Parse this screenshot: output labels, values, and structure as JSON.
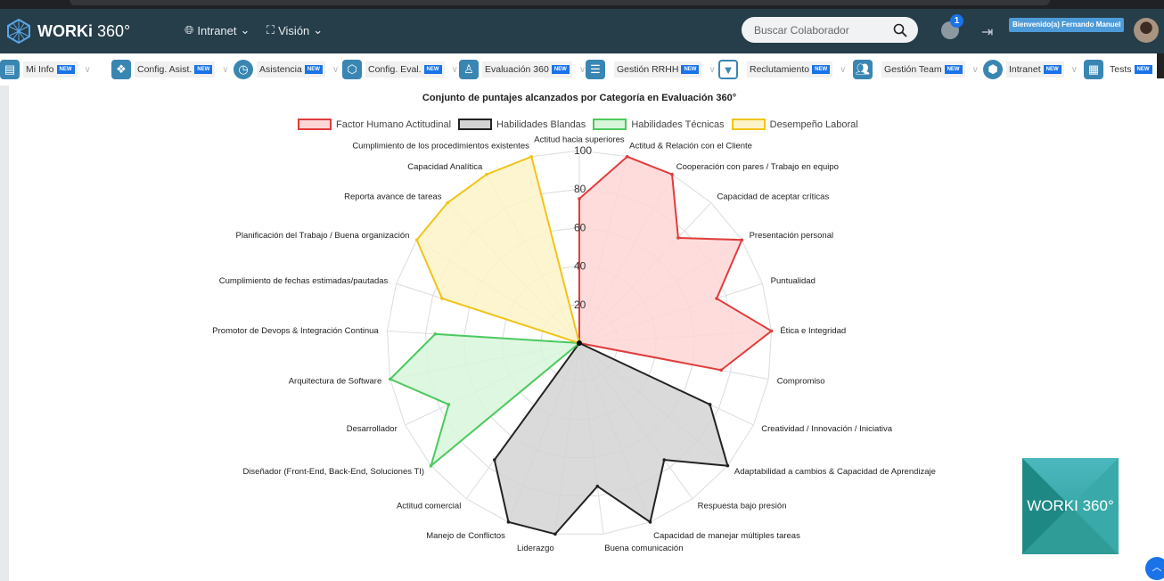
{
  "header": {
    "brand_bold": "WORKi",
    "brand_rest": " 360°",
    "nav": [
      {
        "label": "Intranet",
        "icon": "globe-icon"
      },
      {
        "label": "Visión",
        "icon": "fullscreen-icon"
      }
    ],
    "search_placeholder": "Buscar Colaborador",
    "notification_count": "1",
    "welcome": "Bienvenido(a) Fernando Manuel"
  },
  "navbar": {
    "new_label": "NEW",
    "items": [
      {
        "label": "Mi Info",
        "icon": "id-card-icon"
      },
      {
        "label": "Config. Asist.",
        "icon": "dropbox-icon"
      },
      {
        "label": "Asistencia",
        "icon": "clock-icon"
      },
      {
        "label": "Config. Eval.",
        "icon": "box-icon"
      },
      {
        "label": "Evaluación 360",
        "icon": "award-icon"
      },
      {
        "label": "Gestión RRHH",
        "icon": "stack-icon"
      },
      {
        "label": "Reclutamiento",
        "icon": "tie-icon"
      },
      {
        "label": "Gestión Team",
        "icon": "users-icon"
      },
      {
        "label": "Intranet",
        "icon": "network-icon"
      },
      {
        "label": "Tests",
        "icon": "grid-icon"
      }
    ]
  },
  "chart_data": {
    "type": "radar",
    "title": "Conjunto de puntajes alcanzados por Categoría en Evaluación 360°",
    "rlim": [
      0,
      100
    ],
    "ticks": [
      20,
      40,
      60,
      80,
      100
    ],
    "grid": true,
    "legend_position": "top",
    "categories": [
      "Actitud hacia superiores",
      "Actitud & Relación con el Cliente",
      "Cooperación con pares / Trabajo en equipo",
      "Capacidad de aceptar críticas",
      "Presentación personal",
      "Puntualidad",
      "Ética e Integridad",
      "Compromiso",
      "Creatividad / Innovación / Iniciativa",
      "Adaptabilidad a cambios &  Capacidad de Aprendizaje",
      "Respuesta bajo presión",
      "Capacidad de manejar múltiples tareas",
      "Buena comunicación",
      "Liderazgo",
      "Manejo de Conflictos",
      "Actitud comercial",
      "Diseñador (Front-End, Back-End, Soluciones TI)",
      "Desarrollador",
      "Arquitectura de Software",
      "Promotor de Devops & Integración Continua",
      "Cumplimiento de fechas estimadas/pautadas",
      "Planificación del Trabajo / Buena organización",
      "Reporta avance de tareas",
      "Capacidad Analítica",
      "Cumplimiento de los procedimientos existentes"
    ],
    "series": [
      {
        "name": "Factor Humano Actitudinal",
        "color": "#e03c3c",
        "fill": "#ffd6d6",
        "values": [
          75,
          100,
          100,
          75,
          100,
          75,
          100,
          75,
          0,
          0,
          0,
          0,
          0,
          0,
          0,
          0,
          0,
          0,
          0,
          0,
          0,
          0,
          0,
          0,
          0
        ]
      },
      {
        "name": "Habilidades Blandas",
        "color": "#222222",
        "fill": "#d3d3d3",
        "values": [
          0,
          0,
          0,
          0,
          0,
          0,
          0,
          0,
          75,
          100,
          75,
          100,
          75,
          100,
          100,
          75,
          0,
          0,
          0,
          0,
          0,
          0,
          0,
          0,
          0
        ]
      },
      {
        "name": "Habilidades Técnicas",
        "color": "#4cc95e",
        "fill": "#d8f6dc",
        "values": [
          0,
          0,
          0,
          0,
          0,
          0,
          0,
          0,
          0,
          0,
          0,
          0,
          0,
          0,
          0,
          0,
          100,
          75,
          100,
          75,
          0,
          0,
          0,
          0,
          0
        ]
      },
      {
        "name": "Desempeño Laboral",
        "color": "#f0c419",
        "fill": "#fdf3c8",
        "values": [
          0,
          0,
          0,
          0,
          0,
          0,
          0,
          0,
          0,
          0,
          0,
          0,
          0,
          0,
          0,
          0,
          0,
          0,
          0,
          0,
          75,
          100,
          100,
          100,
          100
        ]
      }
    ]
  },
  "watermark": "WORKI 360°"
}
